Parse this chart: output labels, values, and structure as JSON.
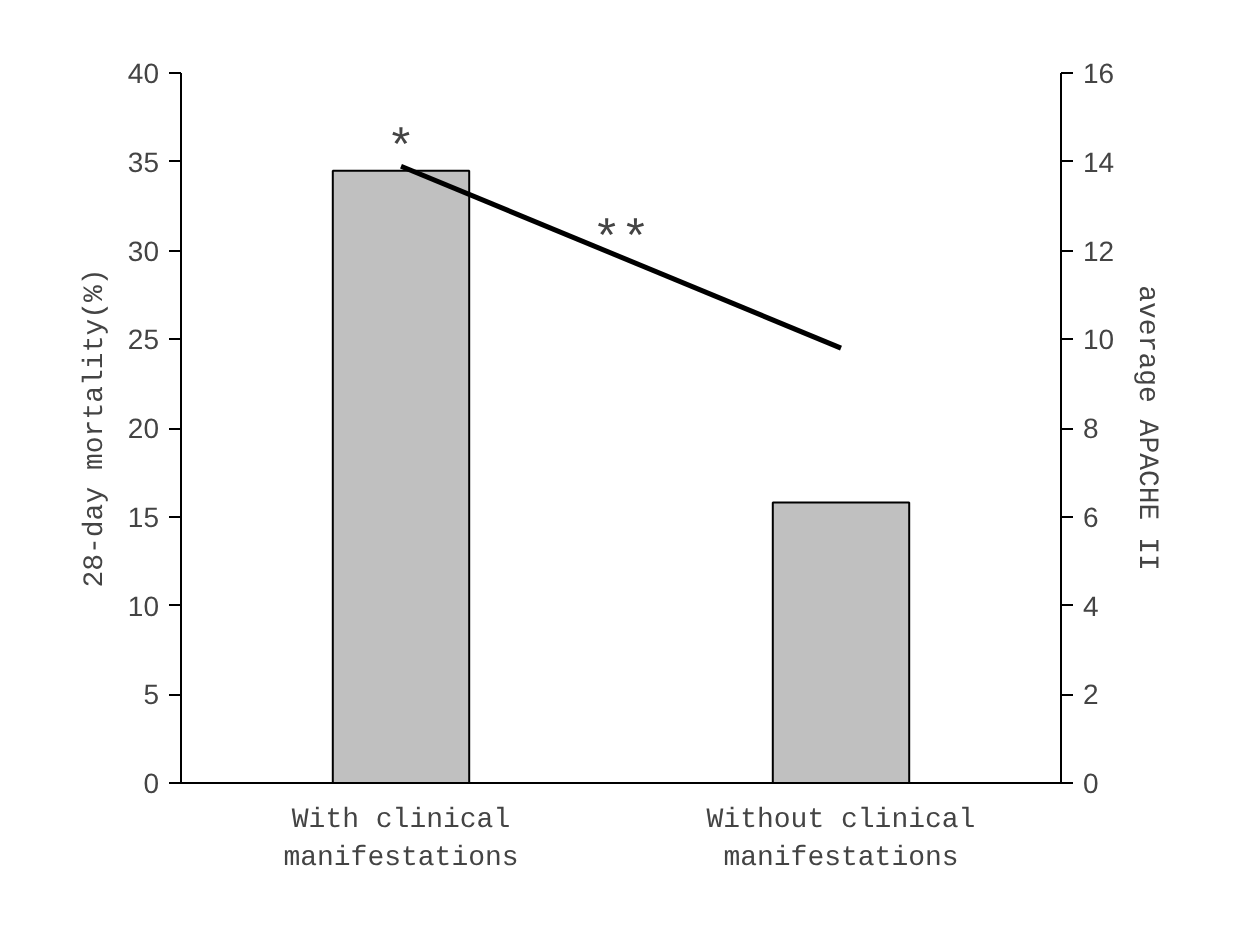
{
  "chart_data": {
    "type": "bar",
    "categories": [
      "With clinical\nmanifestations",
      "Without clinical\nmanifestations"
    ],
    "series": [
      {
        "color": "#c0c0c0",
        "values": [
          34.5,
          15.8
        ]
      },
      {
        "type": "line",
        "axis": "y2",
        "color": "#000000",
        "values": [
          13.9,
          9.8
        ]
      }
    ],
    "ylabel": "28-day mortality(%)",
    "y2label": "average APACHE II",
    "ylim": [
      0,
      40
    ],
    "yticks": [
      0,
      5,
      10,
      15,
      20,
      25,
      30,
      35,
      40
    ],
    "y2lim": [
      0,
      16
    ],
    "y2ticks": [
      0,
      2,
      4,
      6,
      8,
      10,
      12,
      14,
      16
    ],
    "annotations": [
      "*",
      "**"
    ],
    "grid": false,
    "marker": "none",
    "line_style": "solid"
  }
}
